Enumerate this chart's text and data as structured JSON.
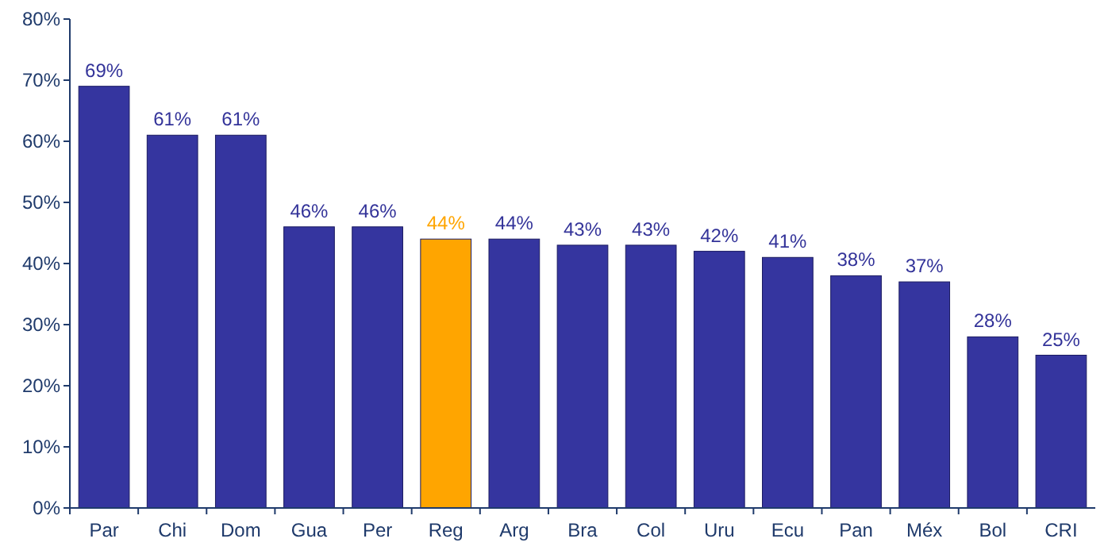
{
  "chart_data": {
    "type": "bar",
    "categories": [
      "Par",
      "Chi",
      "Dom",
      "Gua",
      "Per",
      "Reg",
      "Arg",
      "Bra",
      "Col",
      "Uru",
      "Ecu",
      "Pan",
      "Méx",
      "Bol",
      "CRI"
    ],
    "values": [
      69,
      61,
      61,
      46,
      46,
      44,
      44,
      43,
      43,
      42,
      41,
      38,
      37,
      28,
      25
    ],
    "colors": [
      "#35359f",
      "#35359f",
      "#35359f",
      "#35359f",
      "#35359f",
      "#ffa500",
      "#35359f",
      "#35359f",
      "#35359f",
      "#35359f",
      "#35359f",
      "#35359f",
      "#35359f",
      "#35359f",
      "#35359f"
    ],
    "value_labels": [
      "69%",
      "61%",
      "61%",
      "46%",
      "46%",
      "44%",
      "44%",
      "43%",
      "43%",
      "42%",
      "41%",
      "38%",
      "37%",
      "28%",
      "25%"
    ],
    "ylim": [
      0,
      80
    ],
    "yticks": [
      {
        "value": 0,
        "label": "0%"
      },
      {
        "value": 10,
        "label": "10%"
      },
      {
        "value": 20,
        "label": "20%"
      },
      {
        "value": 30,
        "label": "30%"
      },
      {
        "value": 40,
        "label": "40%"
      },
      {
        "value": 50,
        "label": "50%"
      },
      {
        "value": 60,
        "label": "60%"
      },
      {
        "value": 70,
        "label": "70%"
      },
      {
        "value": 80,
        "label": "80%"
      }
    ],
    "grid": false
  }
}
